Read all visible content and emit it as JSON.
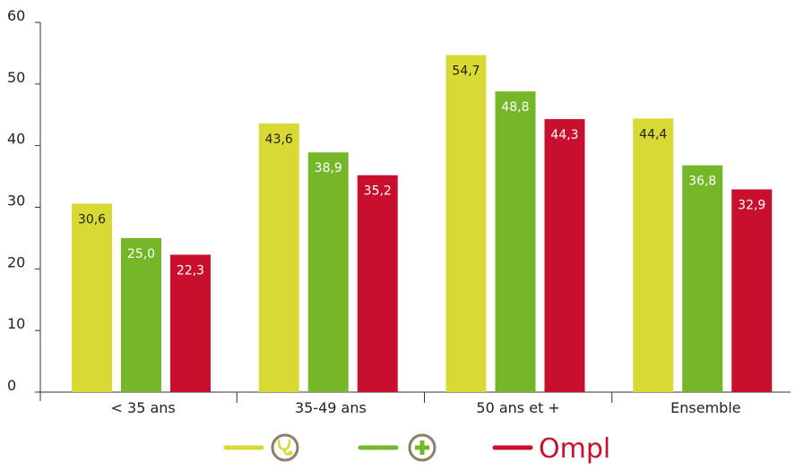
{
  "chart_data": {
    "type": "bar",
    "categories": [
      "< 35 ans",
      "35-49 ans",
      "50 ans et +",
      "Ensemble"
    ],
    "series": [
      {
        "values": [
          30.6,
          43.6,
          54.7,
          44.4
        ],
        "labels": [
          "30,6",
          "43,6",
          "54,7",
          "44,4"
        ],
        "color": "#d9d936",
        "label_color": "#222222",
        "legend_icon": "stethoscope-icon"
      },
      {
        "values": [
          25.0,
          38.9,
          48.8,
          36.8
        ],
        "labels": [
          "25,0",
          "38,9",
          "48,8",
          "36,8"
        ],
        "color": "#76b72a",
        "label_color": "#ffffff",
        "legend_icon": "plus-cross-icon"
      },
      {
        "values": [
          22.3,
          35.2,
          44.3,
          32.9
        ],
        "labels": [
          "22,3",
          "35,2",
          "44,3",
          "32,9"
        ],
        "color": "#c8102e",
        "label_color": "#ffffff",
        "legend_icon": "ompl-logo"
      }
    ],
    "yticks": [
      "0",
      "10",
      "20",
      "30",
      "40",
      "50",
      "60"
    ],
    "ylim": [
      0,
      60
    ],
    "grid": false,
    "legend": {
      "placement": "bottom-center",
      "logo_text": "Ompl"
    }
  }
}
